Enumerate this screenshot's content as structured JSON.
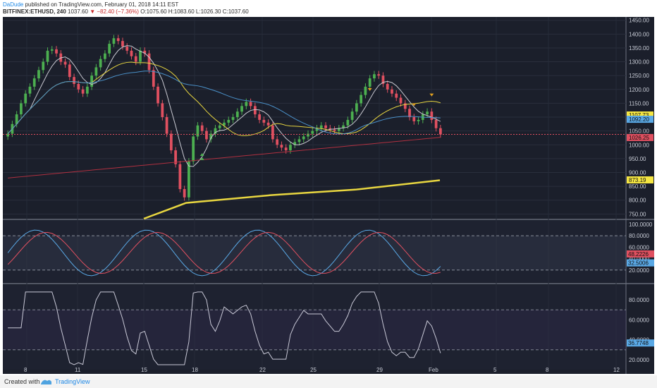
{
  "header": {
    "author": "DaDude",
    "published": "published on TradingView.com, February 01, 2018 14:11 EST",
    "symbol": "BITFINEX:ETHUSD, 240",
    "last": "1037.60",
    "change": "−82.40 (−7.36%)",
    "ohlc": "O:1075.60 H:1083.60 L:1026.30 C:1037.60"
  },
  "footer": {
    "created_with": "Created with",
    "brand": "TradingView"
  },
  "colors": {
    "background": "#1b1f2b",
    "bull": "#4caf50",
    "bear": "#e05060",
    "ma_yellow": "#e8d640",
    "ma_blue": "#4a90c8",
    "ma_red": "#b03040",
    "ma_white": "#c8c8d0"
  },
  "chart_data": {
    "type": "candlestick",
    "price_axis": [
      "1450.00",
      "1400.00",
      "1350.00",
      "1300.00",
      "1250.00",
      "1200.00",
      "1150.00",
      "1100.00",
      "1050.00",
      "1000.00",
      "950.00",
      "900.00",
      "850.00",
      "800.00",
      "750.00"
    ],
    "price_tags": [
      {
        "label": "1107.73",
        "color": "#f5e642"
      },
      {
        "label": "1092.20",
        "color": "#5aa9e6"
      },
      {
        "label": "1026.25",
        "color": "#e05060"
      },
      {
        "label": "873.19",
        "color": "#f5e642"
      }
    ],
    "ylim": [
      733,
      1462
    ],
    "x_ticks": [
      "8",
      "11",
      "15",
      "18",
      "22",
      "25",
      "29",
      "Feb",
      "5",
      "8",
      "12"
    ],
    "close": [
      1040,
      1075,
      1110,
      1150,
      1185,
      1210,
      1240,
      1270,
      1300,
      1340,
      1345,
      1330,
      1300,
      1290,
      1245,
      1220,
      1200,
      1185,
      1210,
      1250,
      1280,
      1310,
      1330,
      1365,
      1385,
      1375,
      1355,
      1340,
      1320,
      1300,
      1340,
      1330,
      1270,
      1210,
      1150,
      1100,
      1040,
      980,
      930,
      840,
      810,
      940,
      1030,
      1070,
      1050,
      1020,
      1040,
      1060,
      1070,
      1080,
      1090,
      1100,
      1120,
      1140,
      1155,
      1140,
      1110,
      1090,
      1080,
      1070,
      1020,
      1000,
      990,
      980,
      1000,
      1010,
      1020,
      1030,
      1040,
      1050,
      1060,
      1070,
      1060,
      1055,
      1050,
      1060,
      1070,
      1090,
      1120,
      1150,
      1180,
      1210,
      1240,
      1255,
      1250,
      1220,
      1200,
      1185,
      1170,
      1150,
      1130,
      1100,
      1085,
      1090,
      1110,
      1120,
      1090,
      1060,
      1037.6
    ],
    "volume_osc": {
      "axis": [
        "100.0000",
        "80.0000",
        "60.0000",
        "40.0000",
        "20.0000"
      ],
      "tags": [
        {
          "label": "48.2226",
          "color": "#e05060"
        },
        {
          "label": "32.5006",
          "color": "#5aa9e6"
        }
      ]
    },
    "rsi": {
      "axis": [
        "80.0000",
        "60.0000",
        "40.0000",
        "20.0000"
      ],
      "tags": [
        {
          "label": "36.7748",
          "color": "#5aa9e6"
        }
      ]
    }
  }
}
